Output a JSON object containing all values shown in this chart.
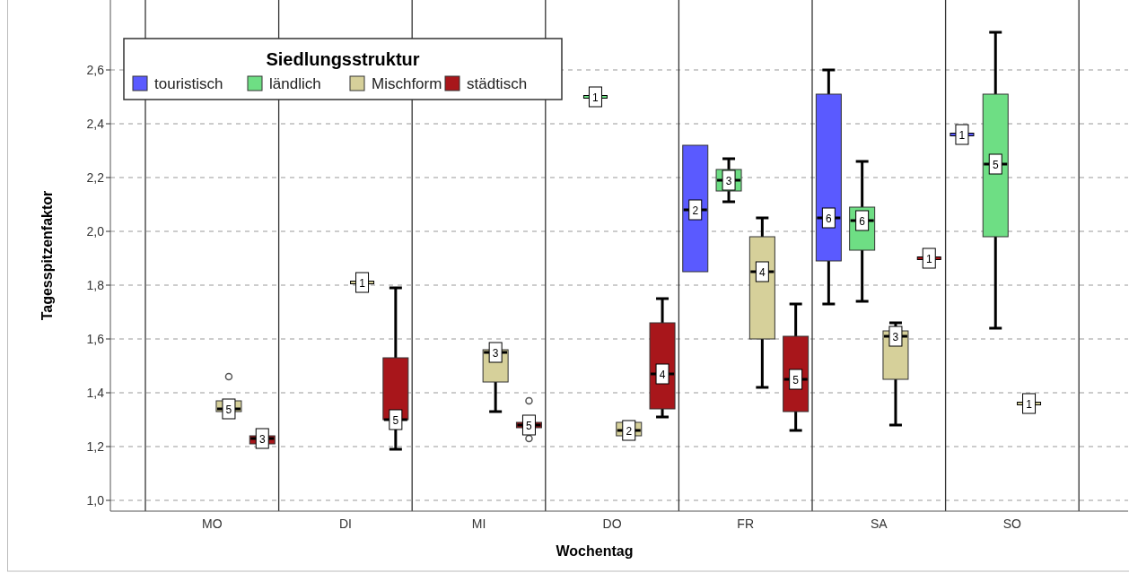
{
  "chart_data": {
    "type": "box",
    "xlabel": "Wochentag",
    "ylabel": "Tagesspitzenfaktor",
    "legend_title": "Siedlungsstruktur",
    "legend": "top left",
    "grid": "y",
    "categories": [
      "MO",
      "DI",
      "MI",
      "DO",
      "FR",
      "SA",
      "SO"
    ],
    "ylim": [
      0.96,
      2.86
    ],
    "yticks": [
      {
        "value": 1,
        "label": "1,0"
      },
      {
        "value": 1.2,
        "label": "1,2"
      },
      {
        "value": 1.4,
        "label": "1,4"
      },
      {
        "value": 1.6,
        "label": "1,6"
      },
      {
        "value": 1.8,
        "label": "1,8"
      },
      {
        "value": 2,
        "label": "2,0"
      },
      {
        "value": 2.2,
        "label": "2,2"
      },
      {
        "value": 2.4,
        "label": "2,4"
      },
      {
        "value": 2.6,
        "label": "2,6"
      }
    ],
    "series": [
      {
        "name": "touristisch",
        "color": "#5a5aff",
        "value_labels": [
          null,
          null,
          null,
          null,
          "2",
          "6",
          "1"
        ],
        "boxes": [
          null,
          null,
          null,
          null,
          {
            "low": 1.85,
            "q1": 1.85,
            "median": 2.08,
            "q3": 2.32,
            "high": 2.32
          },
          {
            "low": 1.73,
            "q1": 1.89,
            "median": 2.05,
            "q3": 2.51,
            "high": 2.6
          },
          {
            "low": 2.36,
            "q1": 2.36,
            "median": 2.36,
            "q3": 2.36,
            "high": 2.36
          }
        ]
      },
      {
        "name": "ländlich",
        "color": "#6ede84",
        "value_labels": [
          null,
          null,
          null,
          "1",
          "3",
          "6",
          "5"
        ],
        "boxes": [
          null,
          null,
          null,
          {
            "low": 2.5,
            "q1": 2.5,
            "median": 2.5,
            "q3": 2.5,
            "high": 2.5
          },
          {
            "low": 2.11,
            "q1": 2.15,
            "median": 2.19,
            "q3": 2.23,
            "high": 2.27
          },
          {
            "low": 1.74,
            "q1": 1.93,
            "median": 2.04,
            "q3": 2.09,
            "high": 2.26
          },
          {
            "low": 1.64,
            "q1": 1.98,
            "median": 2.25,
            "q3": 2.51,
            "high": 2.74
          }
        ]
      },
      {
        "name": "Mischform",
        "color": "#d6d09a",
        "value_labels": [
          "5",
          "1",
          "3",
          "2",
          "4",
          "3",
          "1"
        ],
        "boxes": [
          {
            "low": 1.33,
            "q1": 1.33,
            "median": 1.34,
            "q3": 1.37,
            "high": 1.37,
            "outliers": [
              1.46
            ]
          },
          {
            "low": 1.81,
            "q1": 1.81,
            "median": 1.81,
            "q3": 1.81,
            "high": 1.81
          },
          {
            "low": 1.33,
            "q1": 1.44,
            "median": 1.55,
            "q3": 1.56,
            "high": 1.56
          },
          {
            "low": 1.24,
            "q1": 1.24,
            "median": 1.26,
            "q3": 1.29,
            "high": 1.29
          },
          {
            "low": 1.42,
            "q1": 1.6,
            "median": 1.85,
            "q3": 1.98,
            "high": 2.05
          },
          {
            "low": 1.28,
            "q1": 1.45,
            "median": 1.61,
            "q3": 1.63,
            "high": 1.66
          },
          {
            "low": 1.36,
            "q1": 1.36,
            "median": 1.36,
            "q3": 1.36,
            "high": 1.36
          }
        ]
      },
      {
        "name": "städtisch",
        "color": "#a8161b",
        "value_labels": [
          "3",
          "5",
          "5",
          "4",
          "5",
          "1",
          null
        ],
        "boxes": [
          {
            "low": 1.21,
            "q1": 1.21,
            "median": 1.23,
            "q3": 1.24,
            "high": 1.24
          },
          {
            "low": 1.19,
            "q1": 1.3,
            "median": 1.3,
            "q3": 1.53,
            "high": 1.79
          },
          {
            "low": 1.27,
            "q1": 1.27,
            "median": 1.28,
            "q3": 1.29,
            "high": 1.29,
            "outliers": [
              1.37,
              1.23
            ]
          },
          {
            "low": 1.31,
            "q1": 1.34,
            "median": 1.47,
            "q3": 1.66,
            "high": 1.75
          },
          {
            "low": 1.26,
            "q1": 1.33,
            "median": 1.45,
            "q3": 1.61,
            "high": 1.73
          },
          {
            "low": 1.9,
            "q1": 1.9,
            "median": 1.9,
            "q3": 1.9,
            "high": 1.9
          },
          null
        ]
      }
    ]
  }
}
